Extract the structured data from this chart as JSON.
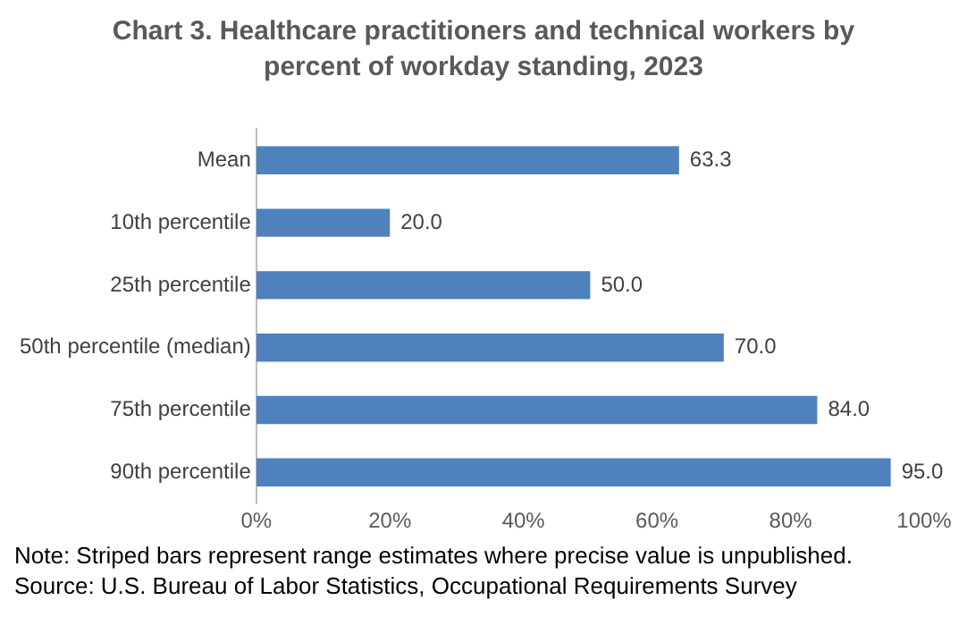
{
  "chart_data": {
    "type": "bar",
    "orientation": "horizontal",
    "title": "Chart 3. Healthcare practitioners and technical workers by percent of workday standing, 2023",
    "categories": [
      "Mean",
      "10th percentile",
      "25th percentile",
      "50th percentile (median)",
      "75th percentile",
      "90th percentile"
    ],
    "values": [
      63.3,
      20.0,
      50.0,
      70.0,
      84.0,
      95.0
    ],
    "value_labels": [
      "63.3",
      "20.0",
      "50.0",
      "70.0",
      "84.0",
      "95.0"
    ],
    "color": "#4f81bd",
    "xlim": [
      0,
      100
    ],
    "xticks": [
      {
        "value": 0,
        "label": "0%"
      },
      {
        "value": 20,
        "label": "20%"
      },
      {
        "value": 40,
        "label": "40%"
      },
      {
        "value": 60,
        "label": "60%"
      },
      {
        "value": 80,
        "label": "80%"
      },
      {
        "value": 100,
        "label": "100%"
      }
    ],
    "grid": false,
    "legend": false,
    "annotations": [
      "Note: Striped bars represent range estimates where precise value is unpublished.",
      "Source: U.S. Bureau of Labor Statistics, Occupational Requirements Survey"
    ]
  }
}
